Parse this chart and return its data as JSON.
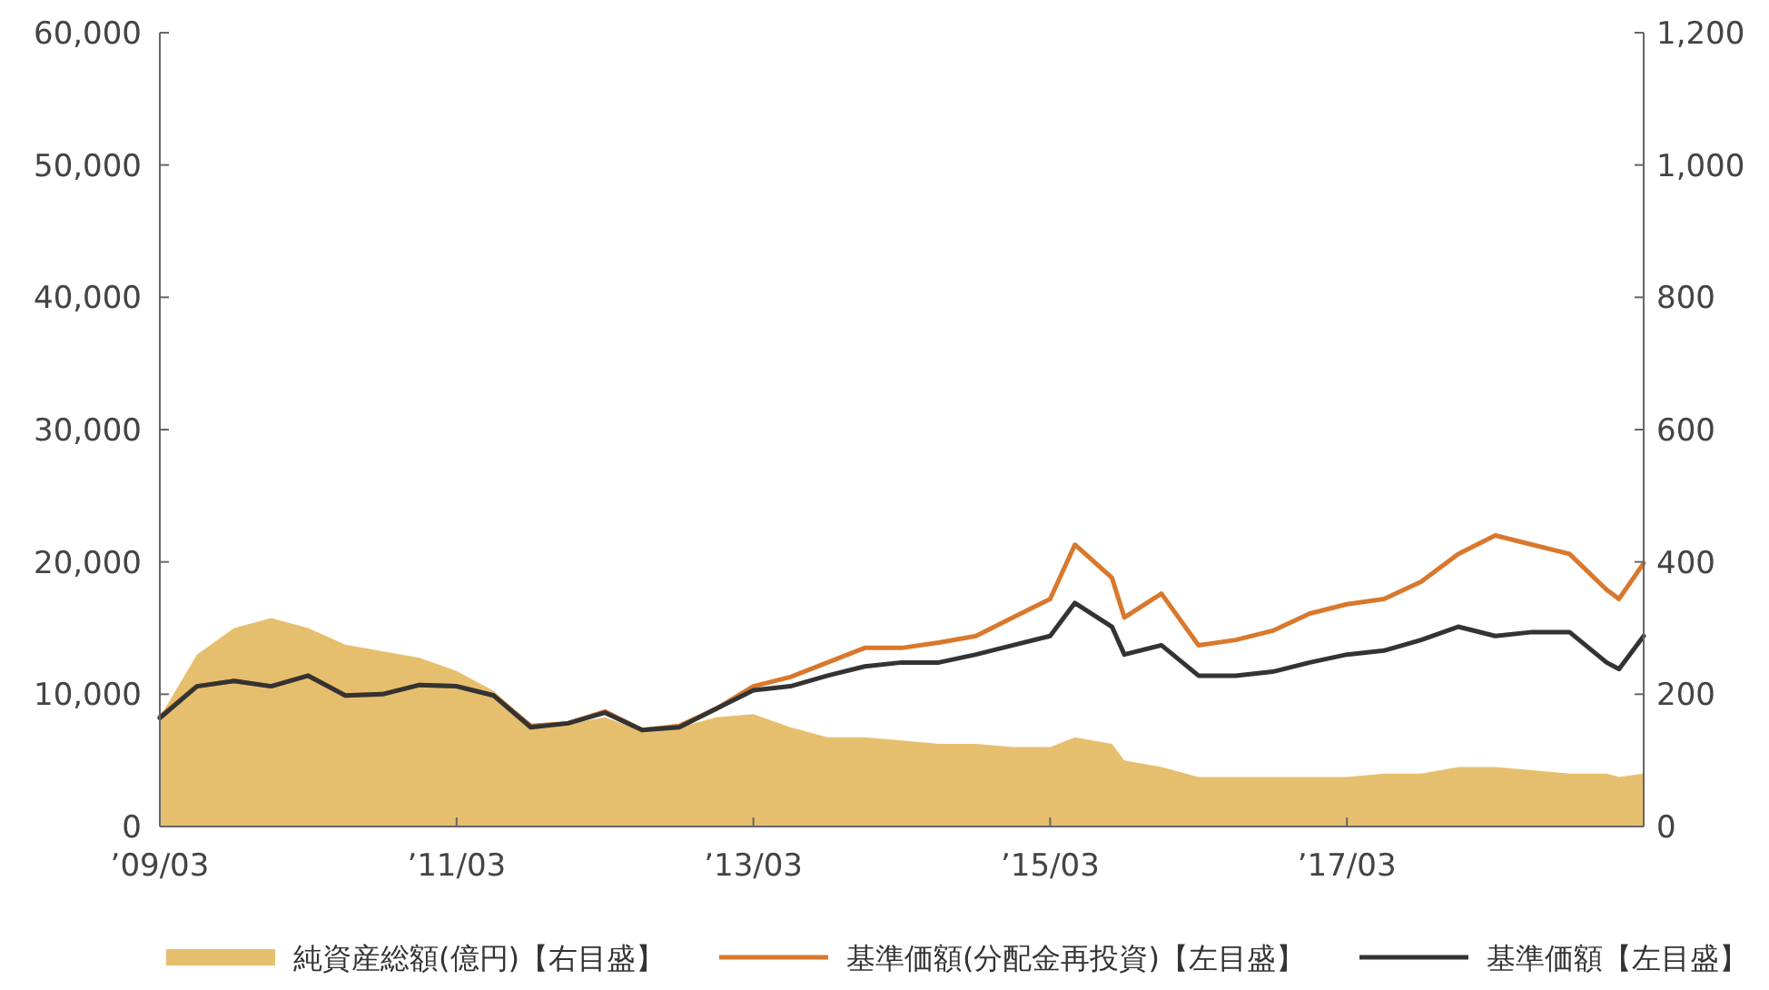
{
  "chart_data": {
    "type": "line",
    "x": [
      "2009-03",
      "2009-06",
      "2009-09",
      "2009-12",
      "2010-03",
      "2010-06",
      "2010-09",
      "2010-12",
      "2011-03",
      "2011-06",
      "2011-09",
      "2011-12",
      "2012-03",
      "2012-06",
      "2012-09",
      "2012-12",
      "2013-03",
      "2013-06",
      "2013-09",
      "2013-12",
      "2014-03",
      "2014-06",
      "2014-09",
      "2014-12",
      "2015-03",
      "2015-05",
      "2015-08",
      "2015-09",
      "2015-12",
      "2016-03",
      "2016-06",
      "2016-09",
      "2016-12",
      "2017-03",
      "2017-06",
      "2017-09",
      "2017-12",
      "2018-03",
      "2018-06",
      "2018-09",
      "2018-12",
      "2019-01",
      "2019-03"
    ],
    "series": [
      {
        "name": "純資産総額(億円)【右目盛】",
        "type": "area",
        "axis": "y2",
        "color": "#e6bf6e",
        "values": [
          165,
          260,
          300,
          315,
          300,
          275,
          265,
          255,
          235,
          205,
          155,
          155,
          165,
          145,
          150,
          165,
          170,
          150,
          135,
          135,
          130,
          125,
          125,
          120,
          120,
          135,
          125,
          100,
          90,
          75,
          75,
          75,
          75,
          75,
          80,
          80,
          90,
          90,
          85,
          80,
          80,
          75,
          80
        ]
      },
      {
        "name": "基準価額(分配金再投資)【左目盛】",
        "color": "#d9782d",
        "values": [
          8300,
          10600,
          11000,
          10600,
          11400,
          9900,
          10000,
          10700,
          10600,
          9900,
          7600,
          7800,
          8700,
          7300,
          7600,
          8900,
          10600,
          11300,
          12400,
          13500,
          13500,
          13900,
          14400,
          15800,
          17200,
          21300,
          18800,
          15800,
          17600,
          13700,
          14100,
          14800,
          16100,
          16800,
          17200,
          18500,
          20600,
          22000,
          21300,
          20600,
          17900,
          17200,
          19900
        ]
      },
      {
        "name": "基準価額【左目盛】",
        "color": "#333333",
        "values": [
          8200,
          10600,
          11000,
          10600,
          11400,
          9900,
          10000,
          10700,
          10600,
          9900,
          7500,
          7800,
          8600,
          7300,
          7500,
          8900,
          10300,
          10600,
          11400,
          12100,
          12400,
          12400,
          13000,
          13700,
          14400,
          16900,
          15100,
          13000,
          13700,
          11400,
          11400,
          11700,
          12400,
          13000,
          13300,
          14100,
          15100,
          14400,
          14700,
          14700,
          12400,
          11900,
          14400
        ]
      }
    ],
    "xlim": [
      "2009-03",
      "2019-03"
    ],
    "xticks": [
      {
        "value": "2009-03",
        "label": "’09/03"
      },
      {
        "value": "2011-03",
        "label": "’11/03"
      },
      {
        "value": "2013-03",
        "label": "’13/03"
      },
      {
        "value": "2015-03",
        "label": "’15/03"
      },
      {
        "value": "2017-03",
        "label": "’17/03"
      }
    ],
    "ylim": [
      0,
      60000
    ],
    "yticks": [
      0,
      {
        "value": 10000,
        "label": "10,000"
      },
      {
        "value": 20000,
        "label": "20,000"
      },
      {
        "value": 30000,
        "label": "30,000"
      },
      {
        "value": 40000,
        "label": "40,000"
      },
      {
        "value": 50000,
        "label": "50,000"
      },
      {
        "value": 60000,
        "label": "60,000"
      }
    ],
    "y2lim": [
      0,
      1200
    ],
    "y2ticks": [
      0,
      200,
      400,
      600,
      800,
      {
        "value": 1000,
        "label": "1,000"
      },
      {
        "value": 1200,
        "label": "1,200"
      }
    ],
    "legend": "bottom",
    "grid": false
  }
}
